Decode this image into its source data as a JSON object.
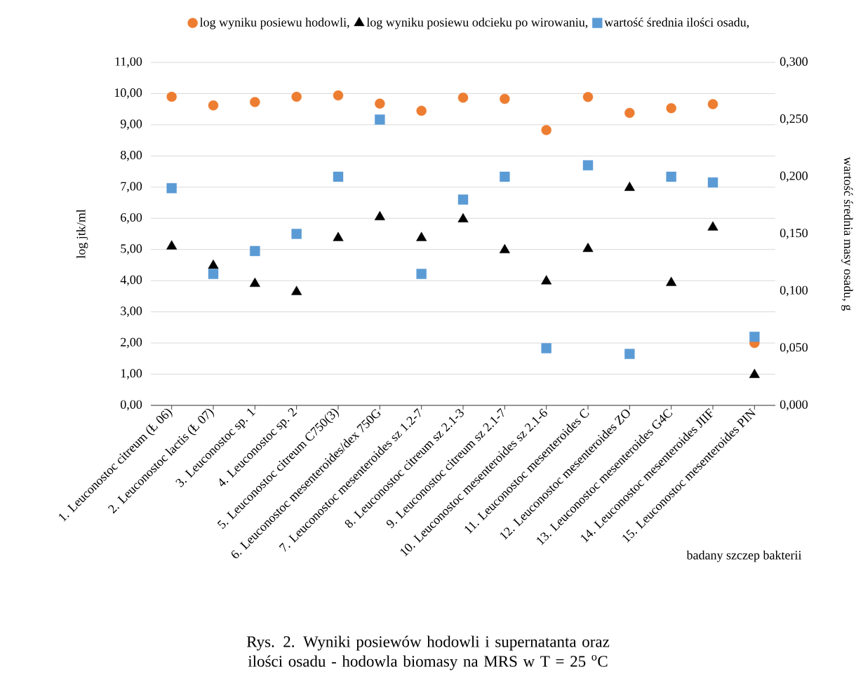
{
  "chart_data": {
    "type": "scatter",
    "title": "Rys. 2. Wyniki posiewów hodowli i supernatanta oraz ilości osadu - hodowla biomasy na MRS w T = 25 $^{o}$C",
    "xlabel": "badany szczep bakterii",
    "ylabel": "log jtk/ml",
    "y2label": "wartość średnia masy osadu, g",
    "categories": [
      "1. Leuconostoc citreum    (Ł 06)",
      "2. Leuconostoc lactis (Ł 07)",
      "3. Leuconostoc sp. 1",
      "4. Leuconostoc sp. 2",
      "5. Leuconostoc citreum C750(3)",
      "6. Leuconostoc mesenteroides/dex 750G",
      "7. Leuconostoc mesenteroides sz 1.2-7",
      "8. Leuconostoc citreum sz  2.1-3",
      "9. Leuconostoc citreum sz 2.1-7",
      "10. Leuconostoc mesenteroides sz 2.1-6",
      "11. Leuconostoc mesenteroides C",
      "12. Leuconostoc mesenteroides ZO",
      "13. Leuconostoc mesenteroides G4C",
      "14. Leuconostoc mesenteroides JIIF",
      "15. Leuconostoc mesenteroides PIN"
    ],
    "series": [
      {
        "name": "log wyniku posiewu hodowli,",
        "color": "#ed7d31",
        "marker": "circle",
        "values": [
          9.9,
          9.62,
          9.73,
          9.9,
          9.94,
          9.68,
          9.45,
          9.87,
          9.83,
          8.83,
          9.89,
          9.38,
          9.53,
          9.66,
          2.0
        ]
      },
      {
        "name": "log wyniku posiewu odcieku po wirowaniu,",
        "color": "#000000",
        "marker": "triangle",
        "values": [
          5.1,
          4.48,
          3.9,
          3.64,
          5.37,
          6.04,
          5.37,
          5.97,
          4.98,
          3.98,
          5.02,
          6.98,
          3.93,
          5.71,
          0.98
        ]
      },
      {
        "name": "wartość średnia ilości osadu,",
        "color": "#5b9bd5",
        "marker": "square",
        "axis": "y2",
        "values": [
          0.19,
          0.115,
          0.135,
          0.15,
          0.2,
          0.25,
          0.115,
          0.18,
          0.2,
          0.05,
          0.21,
          0.045,
          0.2,
          0.195,
          0.06
        ]
      }
    ],
    "ylim": [
      0,
      11
    ],
    "yticks": [
      {
        "value": 0,
        "label": "0,00"
      },
      {
        "value": 1,
        "label": "1,00"
      },
      {
        "value": 2,
        "label": "2,00"
      },
      {
        "value": 3,
        "label": "3,00"
      },
      {
        "value": 4,
        "label": "4,00"
      },
      {
        "value": 5,
        "label": "5,00"
      },
      {
        "value": 6,
        "label": "6,00"
      },
      {
        "value": 7,
        "label": "7,00"
      },
      {
        "value": 8,
        "label": "8,00"
      },
      {
        "value": 9,
        "label": "9,00"
      },
      {
        "value": 10,
        "label": "10,00"
      },
      {
        "value": 11,
        "label": "11,00"
      }
    ],
    "y2lim": [
      0,
      0.3
    ],
    "y2ticks": [
      {
        "value": 0,
        "label": "0,000"
      },
      {
        "value": 0.05,
        "label": "0,050"
      },
      {
        "value": 0.1,
        "label": "0,100"
      },
      {
        "value": 0.15,
        "label": "0,150"
      },
      {
        "value": 0.2,
        "label": "0,200"
      },
      {
        "value": 0.25,
        "label": "0,250"
      },
      {
        "value": 0.3,
        "label": "0,300"
      }
    ],
    "grid": "y",
    "legend": "top"
  }
}
